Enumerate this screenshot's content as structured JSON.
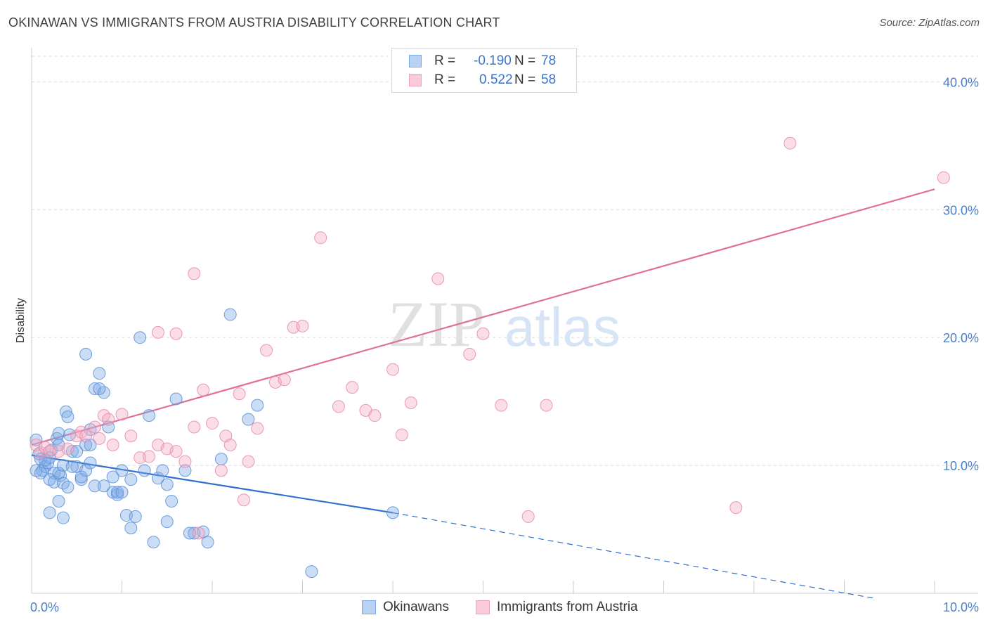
{
  "title": "OKINAWAN VS IMMIGRANTS FROM AUSTRIA DISABILITY CORRELATION CHART",
  "source": "Source: ZipAtlas.com",
  "watermark": {
    "zip": "ZIP",
    "atlas": "atlas"
  },
  "legend": {
    "r_label": "R =",
    "n_label": "N =",
    "series": [
      {
        "r": "-0.190",
        "n": "78"
      },
      {
        "r": "0.522",
        "n": "58"
      }
    ]
  },
  "chart_data": {
    "type": "scatter",
    "title": "OKINAWAN VS IMMIGRANTS FROM AUSTRIA DISABILITY CORRELATION CHART",
    "xlabel": "",
    "ylabel": "Disability",
    "xlim": [
      0,
      10
    ],
    "ylim": [
      0,
      42
    ],
    "x_tick_labels": [
      "0.0%",
      "10.0%"
    ],
    "y_ticks": [
      10,
      20,
      30,
      40
    ],
    "y_tick_labels": [
      "10.0%",
      "20.0%",
      "30.0%",
      "40.0%"
    ],
    "grid": true,
    "legend_position": "bottom-center",
    "series": [
      {
        "name": "Okinawans",
        "color": "#7aaae6",
        "stroke": "#5a8fd6",
        "trend_color": "#2e6fd0",
        "trend": {
          "x0": 0,
          "y0": 10.8,
          "x1": 4.0,
          "y1": 6.3,
          "dashed_to_x": 10.0,
          "dashed_to_y": -0.4
        },
        "points": [
          [
            0.05,
            12.0
          ],
          [
            0.08,
            10.9
          ],
          [
            0.1,
            10.5
          ],
          [
            0.12,
            9.6
          ],
          [
            0.15,
            9.9
          ],
          [
            0.18,
            10.2
          ],
          [
            0.2,
            10.6
          ],
          [
            0.22,
            11.2
          ],
          [
            0.25,
            9.4
          ],
          [
            0.28,
            12.1
          ],
          [
            0.3,
            12.5
          ],
          [
            0.32,
            9.2
          ],
          [
            0.35,
            10.0
          ],
          [
            0.38,
            14.2
          ],
          [
            0.4,
            13.8
          ],
          [
            0.42,
            12.4
          ],
          [
            0.45,
            11.1
          ],
          [
            0.5,
            9.9
          ],
          [
            0.55,
            8.9
          ],
          [
            0.6,
            9.6
          ],
          [
            0.65,
            10.2
          ],
          [
            0.7,
            16.0
          ],
          [
            0.75,
            17.2
          ],
          [
            0.8,
            15.7
          ],
          [
            0.85,
            13.0
          ],
          [
            0.9,
            7.9
          ],
          [
            0.95,
            7.7
          ],
          [
            1.0,
            9.6
          ],
          [
            1.05,
            6.1
          ],
          [
            1.1,
            8.9
          ],
          [
            1.2,
            20.0
          ],
          [
            1.3,
            13.9
          ],
          [
            1.35,
            4.0
          ],
          [
            1.4,
            9.0
          ],
          [
            1.45,
            9.6
          ],
          [
            1.5,
            8.5
          ],
          [
            1.6,
            15.2
          ],
          [
            1.7,
            9.6
          ],
          [
            1.8,
            4.7
          ],
          [
            1.9,
            4.8
          ],
          [
            2.1,
            10.5
          ],
          [
            2.2,
            21.8
          ],
          [
            2.4,
            13.6
          ],
          [
            2.5,
            14.7
          ],
          [
            0.3,
            7.2
          ],
          [
            0.6,
            18.7
          ],
          [
            0.75,
            16.0
          ],
          [
            0.95,
            7.9
          ],
          [
            1.15,
            6.0
          ],
          [
            1.55,
            7.2
          ],
          [
            0.05,
            9.6
          ],
          [
            0.1,
            9.4
          ],
          [
            0.15,
            10.4
          ],
          [
            0.2,
            8.9
          ],
          [
            0.25,
            8.7
          ],
          [
            0.3,
            9.4
          ],
          [
            0.35,
            8.6
          ],
          [
            0.4,
            8.3
          ],
          [
            0.45,
            9.9
          ],
          [
            0.5,
            11.1
          ],
          [
            0.55,
            9.1
          ],
          [
            0.6,
            11.6
          ],
          [
            0.65,
            12.8
          ],
          [
            0.7,
            8.4
          ],
          [
            0.8,
            8.4
          ],
          [
            0.9,
            9.1
          ],
          [
            1.0,
            7.9
          ],
          [
            1.1,
            5.1
          ],
          [
            1.25,
            9.6
          ],
          [
            1.5,
            5.6
          ],
          [
            1.75,
            4.7
          ],
          [
            1.95,
            4.0
          ],
          [
            4.0,
            6.3
          ],
          [
            3.1,
            1.7
          ],
          [
            0.3,
            11.6
          ],
          [
            0.2,
            6.3
          ],
          [
            0.35,
            5.9
          ],
          [
            0.65,
            11.6
          ]
        ]
      },
      {
        "name": "Immigrants from Austria",
        "color": "#f4a9c2",
        "stroke": "#e68aa8",
        "trend_color": "#e07099",
        "trend": {
          "x0": 0,
          "y0": 11.6,
          "x1": 10.0,
          "y1": 31.6
        },
        "points": [
          [
            0.05,
            11.6
          ],
          [
            0.1,
            11.0
          ],
          [
            0.15,
            11.4
          ],
          [
            0.2,
            11.1
          ],
          [
            0.3,
            11.1
          ],
          [
            0.4,
            11.3
          ],
          [
            0.5,
            12.3
          ],
          [
            0.55,
            12.6
          ],
          [
            0.6,
            12.3
          ],
          [
            0.7,
            13.0
          ],
          [
            0.75,
            12.1
          ],
          [
            0.8,
            13.9
          ],
          [
            0.85,
            13.6
          ],
          [
            0.9,
            11.6
          ],
          [
            1.0,
            14.0
          ],
          [
            1.1,
            12.3
          ],
          [
            1.2,
            10.6
          ],
          [
            1.3,
            10.7
          ],
          [
            1.4,
            11.6
          ],
          [
            1.5,
            11.3
          ],
          [
            1.6,
            11.1
          ],
          [
            1.7,
            10.3
          ],
          [
            1.8,
            13.0
          ],
          [
            1.9,
            15.9
          ],
          [
            2.0,
            13.3
          ],
          [
            2.1,
            9.6
          ],
          [
            2.15,
            12.3
          ],
          [
            2.2,
            11.6
          ],
          [
            2.3,
            15.6
          ],
          [
            2.35,
            7.3
          ],
          [
            2.4,
            10.3
          ],
          [
            2.5,
            12.9
          ],
          [
            2.6,
            19.0
          ],
          [
            2.7,
            16.5
          ],
          [
            2.8,
            16.7
          ],
          [
            2.9,
            20.8
          ],
          [
            3.0,
            20.9
          ],
          [
            3.2,
            27.8
          ],
          [
            3.4,
            14.6
          ],
          [
            3.55,
            16.1
          ],
          [
            3.7,
            14.3
          ],
          [
            3.8,
            13.9
          ],
          [
            4.0,
            17.5
          ],
          [
            4.1,
            12.4
          ],
          [
            4.2,
            14.9
          ],
          [
            4.5,
            24.6
          ],
          [
            4.85,
            18.7
          ],
          [
            5.0,
            20.3
          ],
          [
            5.2,
            14.7
          ],
          [
            5.5,
            6.0
          ],
          [
            5.7,
            14.7
          ],
          [
            7.8,
            6.7
          ],
          [
            8.4,
            35.2
          ],
          [
            10.1,
            32.5
          ],
          [
            1.8,
            25.0
          ],
          [
            1.4,
            20.4
          ],
          [
            1.6,
            20.3
          ],
          [
            1.85,
            4.7
          ]
        ]
      }
    ]
  }
}
